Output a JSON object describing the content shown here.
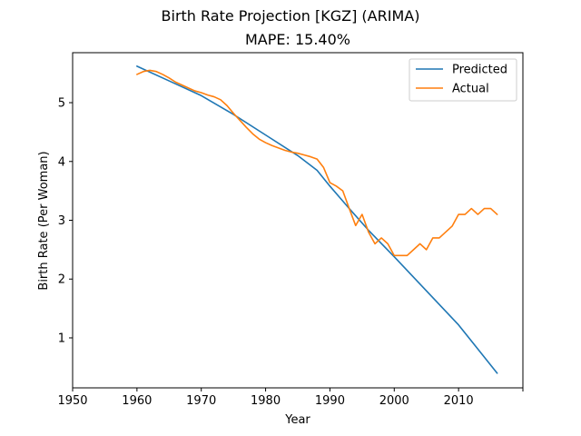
{
  "chart_data": {
    "type": "line",
    "title": "Birth Rate Projection [KGZ] (ARIMA)",
    "subtitle": "MAPE: 15.40%",
    "xlabel": "Year",
    "ylabel": "Birth Rate (Per Woman)",
    "xlim": [
      1950,
      2020
    ],
    "ylim": [
      0.15,
      5.85
    ],
    "xticks": [
      1950,
      1960,
      1970,
      1980,
      1990,
      2000,
      2010
    ],
    "yticks": [
      1,
      2,
      3,
      4,
      5
    ],
    "legend_position": "top-right",
    "grid": false,
    "series": [
      {
        "name": "Predicted",
        "color": "#1f77b4",
        "x": [
          1960,
          1965,
          1970,
          1975,
          1980,
          1985,
          1988,
          1990,
          1993,
          1996,
          2000,
          2005,
          2010,
          2016
        ],
        "y": [
          5.62,
          5.37,
          5.12,
          4.8,
          4.45,
          4.1,
          3.85,
          3.58,
          3.2,
          2.83,
          2.38,
          1.8,
          1.22,
          0.4
        ]
      },
      {
        "name": "Actual",
        "color": "#ff7f0e",
        "x": [
          1960,
          1961,
          1962,
          1963,
          1964,
          1965,
          1966,
          1967,
          1968,
          1969,
          1970,
          1971,
          1972,
          1973,
          1974,
          1975,
          1976,
          1977,
          1978,
          1979,
          1980,
          1981,
          1982,
          1983,
          1984,
          1985,
          1986,
          1987,
          1988,
          1989,
          1990,
          1991,
          1992,
          1993,
          1994,
          1995,
          1996,
          1997,
          1998,
          1999,
          2000,
          2001,
          2002,
          2003,
          2004,
          2005,
          2006,
          2007,
          2008,
          2009,
          2010,
          2011,
          2012,
          2013,
          2014,
          2015,
          2016
        ],
        "y": [
          5.48,
          5.53,
          5.55,
          5.53,
          5.48,
          5.42,
          5.35,
          5.3,
          5.25,
          5.2,
          5.17,
          5.13,
          5.1,
          5.05,
          4.95,
          4.82,
          4.7,
          4.58,
          4.47,
          4.38,
          4.32,
          4.27,
          4.23,
          4.19,
          4.16,
          4.14,
          4.11,
          4.08,
          4.04,
          3.9,
          3.64,
          3.58,
          3.5,
          3.2,
          2.91,
          3.1,
          2.8,
          2.6,
          2.7,
          2.6,
          2.4,
          2.4,
          2.4,
          2.5,
          2.6,
          2.5,
          2.7,
          2.7,
          2.8,
          2.9,
          3.1,
          3.1,
          3.2,
          3.1,
          3.2,
          3.2,
          3.1
        ]
      }
    ]
  }
}
